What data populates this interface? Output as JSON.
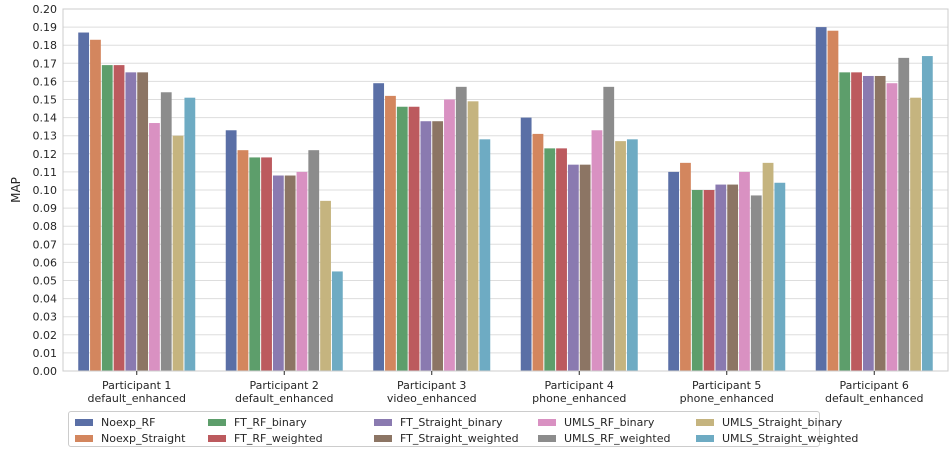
{
  "chart_data": {
    "type": "bar",
    "title": "",
    "xlabel": "",
    "ylabel": "MAP",
    "ylim": [
      0,
      0.2
    ],
    "yticks": [
      "0.00",
      "0.01",
      "0.02",
      "0.03",
      "0.04",
      "0.05",
      "0.06",
      "0.07",
      "0.08",
      "0.09",
      "0.10",
      "0.11",
      "0.12",
      "0.13",
      "0.14",
      "0.15",
      "0.16",
      "0.17",
      "0.18",
      "0.19",
      "0.20"
    ],
    "grid": true,
    "legend": "bottom",
    "categories": [
      [
        "Participant 1",
        "default_enhanced"
      ],
      [
        "Participant 2",
        "default_enhanced"
      ],
      [
        "Participant 3",
        "video_enhanced"
      ],
      [
        "Participant 4",
        "phone_enhanced"
      ],
      [
        "Participant 5",
        "phone_enhanced"
      ],
      [
        "Participant 6",
        "default_enhanced"
      ]
    ],
    "series": [
      {
        "name": "Noexp_RF",
        "color": "#5a6fa6",
        "values": [
          0.187,
          0.133,
          0.159,
          0.14,
          0.11,
          0.19
        ]
      },
      {
        "name": "Noexp_Straight",
        "color": "#d3865e",
        "values": [
          0.183,
          0.122,
          0.152,
          0.131,
          0.115,
          0.188
        ]
      },
      {
        "name": "FT_RF_binary",
        "color": "#5d9e6b",
        "values": [
          0.169,
          0.118,
          0.146,
          0.123,
          0.1,
          0.165
        ]
      },
      {
        "name": "FT_RF_weighted",
        "color": "#bc5a5e",
        "values": [
          0.169,
          0.118,
          0.146,
          0.123,
          0.1,
          0.165
        ]
      },
      {
        "name": "FT_Straight_binary",
        "color": "#8a7ab0",
        "values": [
          0.165,
          0.108,
          0.138,
          0.114,
          0.103,
          0.163
        ]
      },
      {
        "name": "FT_Straight_weighted",
        "color": "#8c7564",
        "values": [
          0.165,
          0.108,
          0.138,
          0.114,
          0.103,
          0.163
        ]
      },
      {
        "name": "UMLS_RF_binary",
        "color": "#d991c2",
        "values": [
          0.137,
          0.11,
          0.15,
          0.133,
          0.11,
          0.159
        ]
      },
      {
        "name": "UMLS_RF_weighted",
        "color": "#8c8c8c",
        "values": [
          0.154,
          0.122,
          0.157,
          0.157,
          0.097,
          0.173
        ]
      },
      {
        "name": "UMLS_Straight_binary",
        "color": "#c5b47f",
        "values": [
          0.13,
          0.094,
          0.149,
          0.127,
          0.115,
          0.151
        ]
      },
      {
        "name": "UMLS_Straight_weighted",
        "color": "#6eabc3",
        "values": [
          0.151,
          0.055,
          0.128,
          0.128,
          0.104,
          0.174
        ]
      }
    ]
  }
}
